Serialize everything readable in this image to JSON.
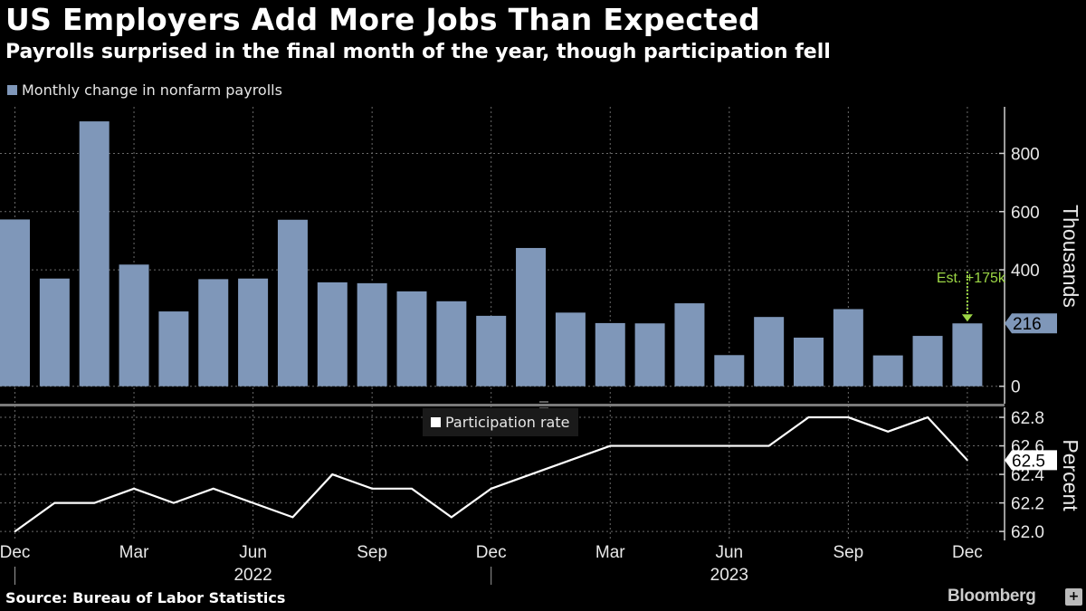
{
  "header": {
    "title": "US Employers Add More Jobs Than Expected",
    "subtitle": "Payrolls surprised in the final month of the year, though participation fell"
  },
  "footer": {
    "source": "Source: Bureau of Labor Statistics",
    "brand": "Bloomberg"
  },
  "colors": {
    "background": "#000000",
    "bar": "#7f97b9",
    "line": "#ffffff",
    "annotation": "#9cd645"
  },
  "chart_data": [
    {
      "type": "bar",
      "legend": "Monthly change in nonfarm payrolls",
      "ylabel": "Thousands",
      "ylim": [
        -60,
        960
      ],
      "yticks": [
        0,
        400,
        600,
        800
      ],
      "grid": true,
      "categories": [
        "Dec 2021",
        "Jan 2022",
        "Feb 2022",
        "Mar 2022",
        "Apr 2022",
        "May 2022",
        "Jun 2022",
        "Jul 2022",
        "Aug 2022",
        "Sep 2022",
        "Oct 2022",
        "Nov 2022",
        "Dec 2022",
        "Jan 2023",
        "Feb 2023",
        "Mar 2023",
        "Apr 2023",
        "May 2023",
        "Jun 2023",
        "Jul 2023",
        "Aug 2023",
        "Sep 2023",
        "Oct 2023",
        "Nov 2023",
        "Dec 2023"
      ],
      "values": [
        573,
        370,
        910,
        418,
        257,
        368,
        370,
        572,
        357,
        354,
        326,
        292,
        242,
        475,
        253,
        217,
        216,
        285,
        107,
        238,
        167,
        265,
        106,
        173,
        216
      ],
      "last_value_label": "216",
      "annotation": {
        "text": "Est. +175k",
        "value": 175
      }
    },
    {
      "type": "line",
      "legend": "Participation rate",
      "ylabel": "Percent",
      "ylim": [
        61.95,
        62.87
      ],
      "yticks": [
        "62.0",
        "62.2",
        "62.4",
        "62.6",
        "62.8"
      ],
      "grid": true,
      "x": [
        "Dec 2021",
        "Jan 2022",
        "Feb 2022",
        "Mar 2022",
        "Apr 2022",
        "May 2022",
        "Jun 2022",
        "Jul 2022",
        "Aug 2022",
        "Sep 2022",
        "Oct 2022",
        "Nov 2022",
        "Dec 2022",
        "Jan 2023",
        "Feb 2023",
        "Mar 2023",
        "Apr 2023",
        "May 2023",
        "Jun 2023",
        "Jul 2023",
        "Aug 2023",
        "Sep 2023",
        "Oct 2023",
        "Nov 2023",
        "Dec 2023"
      ],
      "values": [
        62.0,
        62.2,
        62.2,
        62.3,
        62.2,
        62.3,
        62.2,
        62.1,
        62.4,
        62.3,
        62.3,
        62.1,
        62.3,
        62.4,
        62.5,
        62.6,
        62.6,
        62.6,
        62.6,
        62.6,
        62.8,
        62.8,
        62.7,
        62.8,
        62.5
      ],
      "last_value_label": "62.5"
    }
  ],
  "x_axis": {
    "month_ticks": [
      {
        "label": "Dec",
        "index": 0
      },
      {
        "label": "Mar",
        "index": 3
      },
      {
        "label": "Jun",
        "index": 6
      },
      {
        "label": "Sep",
        "index": 9
      },
      {
        "label": "Dec",
        "index": 12
      },
      {
        "label": "Mar",
        "index": 15
      },
      {
        "label": "Jun",
        "index": 18
      },
      {
        "label": "Sep",
        "index": 21
      },
      {
        "label": "Dec",
        "index": 24
      }
    ],
    "years": [
      {
        "label": "2022",
        "index": 6
      },
      {
        "label": "2023",
        "index": 18
      }
    ],
    "year_dividers": [
      0.5,
      12.5
    ]
  }
}
